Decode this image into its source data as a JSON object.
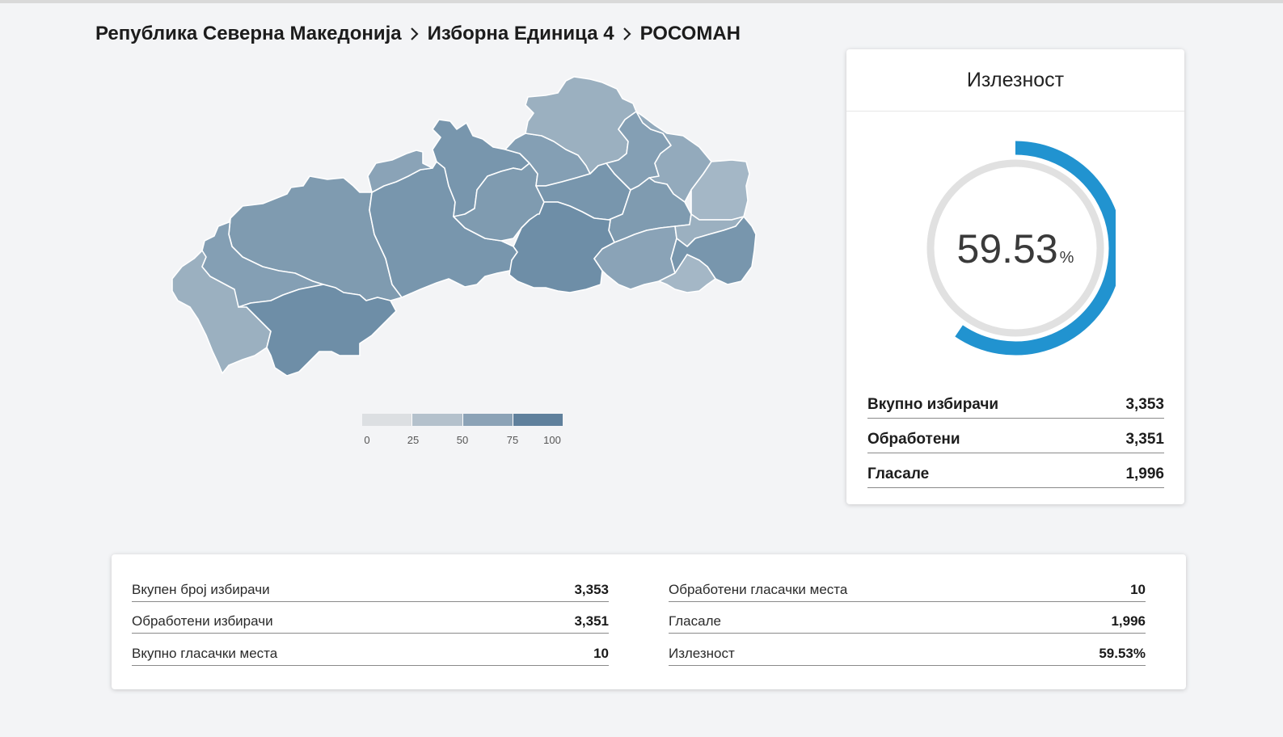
{
  "breadcrumb": {
    "items": [
      "Република Северна Македонија",
      "Изборна Единица 4",
      "РОСОМАН"
    ]
  },
  "map": {
    "fill_colors": [
      "#7f9bb0",
      "#8aa3b7",
      "#7896ad",
      "#93aabc",
      "#6e8ea7",
      "#9bb0c0",
      "#849fb4",
      "#a4b7c6"
    ],
    "border_color": "#ffffff"
  },
  "legend": {
    "ticks": [
      "0",
      "25",
      "50",
      "75",
      "100"
    ],
    "colors": [
      "#dcdfe2",
      "#b4c1cc",
      "#8ba2b6",
      "#5f809c"
    ]
  },
  "turnout": {
    "title": "Излезност",
    "value": "59.53",
    "unit": "%",
    "fraction": 0.5953,
    "arc_color": "#2193d0",
    "track_color": "#e1e1e1",
    "rows": [
      {
        "label": "Вкупно избирачи",
        "value": "3,353"
      },
      {
        "label": "Обработени",
        "value": "3,351"
      },
      {
        "label": "Гласале",
        "value": "1,996"
      }
    ]
  },
  "summary": {
    "left": [
      {
        "label": "Вкупен број избирачи",
        "value": "3,353"
      },
      {
        "label": "Обработени избирачи",
        "value": "3,351"
      },
      {
        "label": "Вкупно гласачки места",
        "value": "10"
      }
    ],
    "right": [
      {
        "label": "Обработени гласачки места",
        "value": "10"
      },
      {
        "label": "Гласале",
        "value": "1,996"
      },
      {
        "label": "Излезност",
        "value": "59.53%"
      }
    ]
  }
}
